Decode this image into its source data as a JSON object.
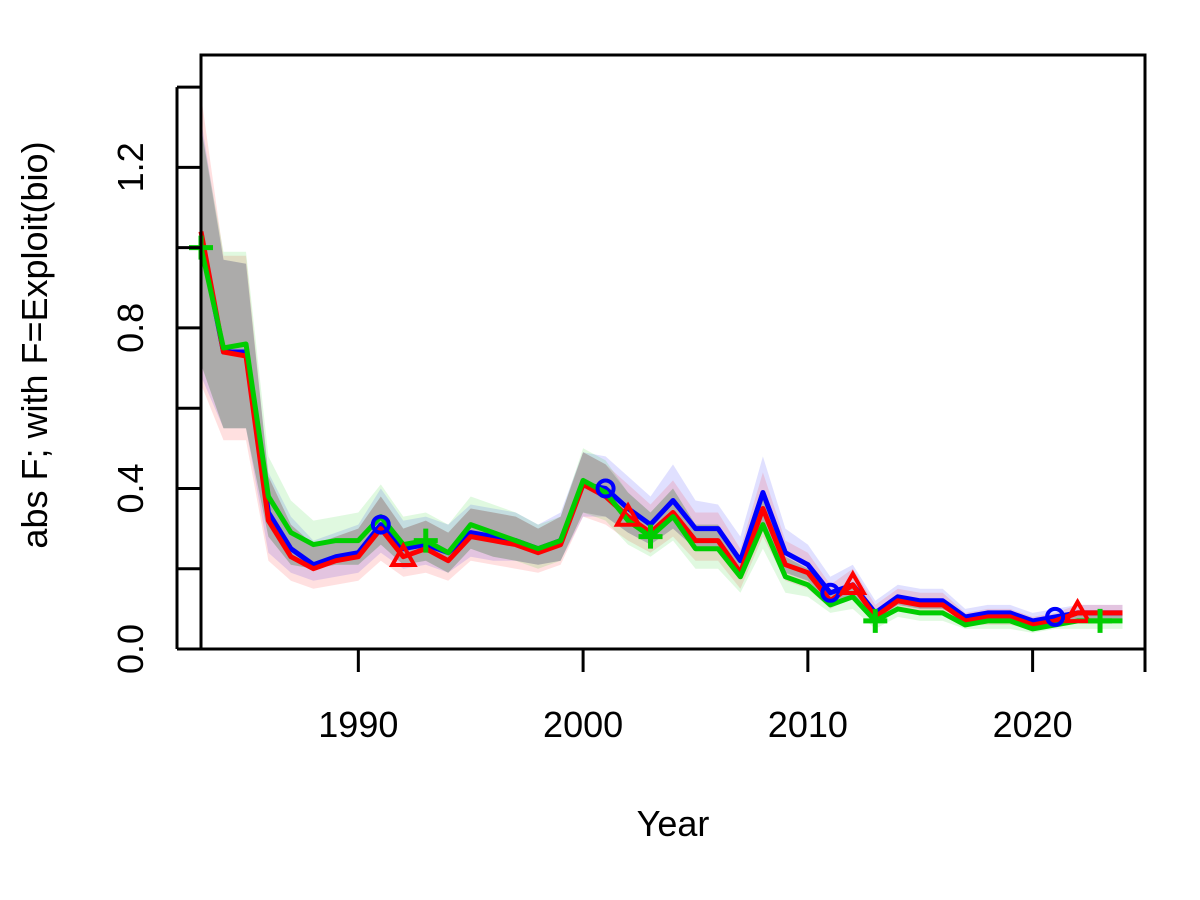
{
  "chart_data": {
    "type": "line",
    "title": "",
    "xlabel": "Year",
    "ylabel": "abs F; with F=Exploit(bio)",
    "xlim": [
      1983,
      2025
    ],
    "ylim": [
      0,
      1.48
    ],
    "x_ticks": [
      1990,
      2000,
      2010,
      2020
    ],
    "x_tick_labels": [
      "1990",
      "2000",
      "2010",
      "2020"
    ],
    "y_ticks": [
      0,
      0.2,
      0.4,
      0.6,
      0.8,
      1.0,
      1.2,
      1.4
    ],
    "y_tick_labels": [
      "0.0",
      "",
      "0.4",
      "",
      "0.8",
      "",
      "1.2",
      ""
    ],
    "grid": false,
    "x": [
      1983,
      1984,
      1985,
      1986,
      1987,
      1988,
      1989,
      1990,
      1991,
      1992,
      1993,
      1994,
      1995,
      1996,
      1997,
      1998,
      1999,
      2000,
      2001,
      2002,
      2003,
      2004,
      2005,
      2006,
      2007,
      2008,
      2009,
      2010,
      2011,
      2012,
      2013,
      2014,
      2015,
      2016,
      2017,
      2018,
      2019,
      2020,
      2021,
      2022,
      2023,
      2024
    ],
    "series": [
      {
        "name": "blue",
        "color": "#0000ff",
        "marker": "circle",
        "marker_x": [
          1991,
          2001,
          2011,
          2021
        ],
        "values": [
          1.02,
          0.74,
          0.74,
          0.34,
          0.25,
          0.21,
          0.23,
          0.24,
          0.31,
          0.25,
          0.26,
          0.24,
          0.29,
          0.28,
          0.27,
          0.25,
          0.27,
          0.41,
          0.4,
          0.35,
          0.31,
          0.37,
          0.3,
          0.3,
          0.22,
          0.39,
          0.24,
          0.21,
          0.14,
          0.16,
          0.09,
          0.13,
          0.12,
          0.12,
          0.08,
          0.09,
          0.09,
          0.07,
          0.08,
          0.09,
          0.09,
          0.09
        ],
        "lower": [
          0.68,
          0.55,
          0.55,
          0.24,
          0.19,
          0.17,
          0.18,
          0.19,
          0.24,
          0.2,
          0.21,
          0.19,
          0.23,
          0.22,
          0.22,
          0.21,
          0.22,
          0.33,
          0.33,
          0.29,
          0.26,
          0.3,
          0.25,
          0.25,
          0.18,
          0.3,
          0.19,
          0.17,
          0.11,
          0.13,
          0.07,
          0.11,
          0.1,
          0.1,
          0.07,
          0.07,
          0.07,
          0.06,
          0.06,
          0.07,
          0.07,
          0.07
        ],
        "upper": [
          1.32,
          0.97,
          0.96,
          0.44,
          0.33,
          0.27,
          0.29,
          0.31,
          0.4,
          0.32,
          0.33,
          0.31,
          0.36,
          0.35,
          0.34,
          0.31,
          0.34,
          0.49,
          0.48,
          0.43,
          0.38,
          0.46,
          0.37,
          0.36,
          0.28,
          0.48,
          0.3,
          0.26,
          0.18,
          0.21,
          0.12,
          0.16,
          0.15,
          0.15,
          0.1,
          0.11,
          0.11,
          0.09,
          0.1,
          0.11,
          0.11,
          0.11
        ]
      },
      {
        "name": "red",
        "color": "#ff0000",
        "marker": "triangle",
        "marker_x": [
          1992,
          2002,
          2012,
          2022
        ],
        "values": [
          1.04,
          0.74,
          0.73,
          0.32,
          0.23,
          0.2,
          0.22,
          0.23,
          0.3,
          0.23,
          0.25,
          0.22,
          0.28,
          0.27,
          0.26,
          0.24,
          0.26,
          0.41,
          0.38,
          0.33,
          0.29,
          0.34,
          0.27,
          0.27,
          0.19,
          0.35,
          0.21,
          0.19,
          0.12,
          0.16,
          0.08,
          0.12,
          0.11,
          0.11,
          0.07,
          0.08,
          0.08,
          0.06,
          0.07,
          0.09,
          0.09,
          0.09
        ],
        "lower": [
          0.66,
          0.52,
          0.52,
          0.22,
          0.17,
          0.15,
          0.16,
          0.17,
          0.22,
          0.18,
          0.19,
          0.17,
          0.22,
          0.21,
          0.2,
          0.19,
          0.21,
          0.33,
          0.31,
          0.27,
          0.24,
          0.28,
          0.22,
          0.22,
          0.15,
          0.28,
          0.17,
          0.15,
          0.1,
          0.13,
          0.06,
          0.1,
          0.09,
          0.09,
          0.06,
          0.06,
          0.06,
          0.05,
          0.06,
          0.07,
          0.07,
          0.07
        ],
        "upper": [
          1.38,
          0.98,
          0.98,
          0.43,
          0.31,
          0.26,
          0.28,
          0.3,
          0.38,
          0.3,
          0.32,
          0.29,
          0.35,
          0.34,
          0.33,
          0.3,
          0.33,
          0.49,
          0.46,
          0.41,
          0.36,
          0.42,
          0.34,
          0.34,
          0.25,
          0.44,
          0.27,
          0.24,
          0.16,
          0.2,
          0.11,
          0.15,
          0.14,
          0.14,
          0.09,
          0.1,
          0.1,
          0.08,
          0.09,
          0.11,
          0.11,
          0.11
        ]
      },
      {
        "name": "green",
        "color": "#00cd00",
        "marker": "plus",
        "marker_x": [
          1983,
          1993,
          2003,
          2013,
          2023
        ],
        "values": [
          1.0,
          0.75,
          0.76,
          0.38,
          0.29,
          0.26,
          0.27,
          0.27,
          0.33,
          0.26,
          0.27,
          0.24,
          0.31,
          0.29,
          0.27,
          0.25,
          0.27,
          0.42,
          0.39,
          0.32,
          0.28,
          0.33,
          0.25,
          0.25,
          0.18,
          0.31,
          0.18,
          0.16,
          0.11,
          0.13,
          0.07,
          0.1,
          0.09,
          0.09,
          0.06,
          0.07,
          0.07,
          0.05,
          0.06,
          0.07,
          0.07,
          0.07
        ],
        "lower": [
          0.71,
          0.55,
          0.55,
          0.28,
          0.21,
          0.2,
          0.21,
          0.21,
          0.26,
          0.21,
          0.22,
          0.19,
          0.25,
          0.23,
          0.22,
          0.2,
          0.22,
          0.34,
          0.32,
          0.26,
          0.23,
          0.27,
          0.2,
          0.2,
          0.14,
          0.25,
          0.14,
          0.13,
          0.09,
          0.1,
          0.05,
          0.08,
          0.07,
          0.07,
          0.05,
          0.05,
          0.05,
          0.04,
          0.05,
          0.05,
          0.05,
          0.05
        ],
        "upper": [
          1.3,
          0.99,
          0.99,
          0.48,
          0.37,
          0.32,
          0.33,
          0.34,
          0.41,
          0.33,
          0.34,
          0.31,
          0.38,
          0.36,
          0.34,
          0.31,
          0.33,
          0.5,
          0.47,
          0.39,
          0.34,
          0.4,
          0.31,
          0.31,
          0.23,
          0.38,
          0.23,
          0.2,
          0.14,
          0.16,
          0.09,
          0.13,
          0.11,
          0.11,
          0.08,
          0.09,
          0.09,
          0.07,
          0.08,
          0.09,
          0.09,
          0.09
        ]
      }
    ]
  }
}
